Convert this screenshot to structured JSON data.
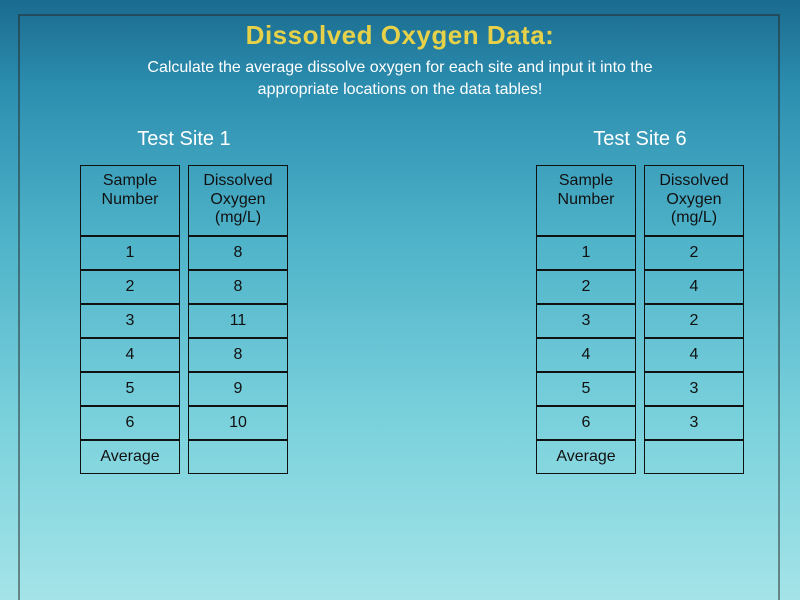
{
  "title": {
    "text": "Dissolved Oxygen Data:",
    "color": "#e6d148"
  },
  "subtitle_line1": "Calculate the average dissolve oxygen for each site and input it into the",
  "subtitle_line2": "appropriate locations on the data tables!",
  "colors": {
    "title_color": "#e6d148",
    "subtitle_color": "#ffffff",
    "site_title_color": "#ffffff",
    "cell_text_color": "#111111",
    "cell_border_color": "#111111",
    "bg_gradient_top": "#1a6b8f",
    "bg_gradient_bottom": "#a4e4e8"
  },
  "site1": {
    "title": "Test Site 1",
    "col1_header": "Sample\nNumber",
    "col2_header": "Dissolved\nOxygen\n(mg/L)",
    "rows": [
      {
        "n": "1",
        "v": "8"
      },
      {
        "n": "2",
        "v": "8"
      },
      {
        "n": "3",
        "v": "11"
      },
      {
        "n": "4",
        "v": "8"
      },
      {
        "n": "5",
        "v": "9"
      },
      {
        "n": "6",
        "v": "10"
      }
    ],
    "average_label": "Average",
    "average_value": ""
  },
  "site6": {
    "title": "Test Site 6",
    "col1_header": "Sample\nNumber",
    "col2_header": "Dissolved\nOxygen\n(mg/L)",
    "rows": [
      {
        "n": "1",
        "v": "2"
      },
      {
        "n": "2",
        "v": "4"
      },
      {
        "n": "3",
        "v": "2"
      },
      {
        "n": "4",
        "v": "4"
      },
      {
        "n": "5",
        "v": "3"
      },
      {
        "n": "6",
        "v": "3"
      }
    ],
    "average_label": "Average",
    "average_value": ""
  }
}
